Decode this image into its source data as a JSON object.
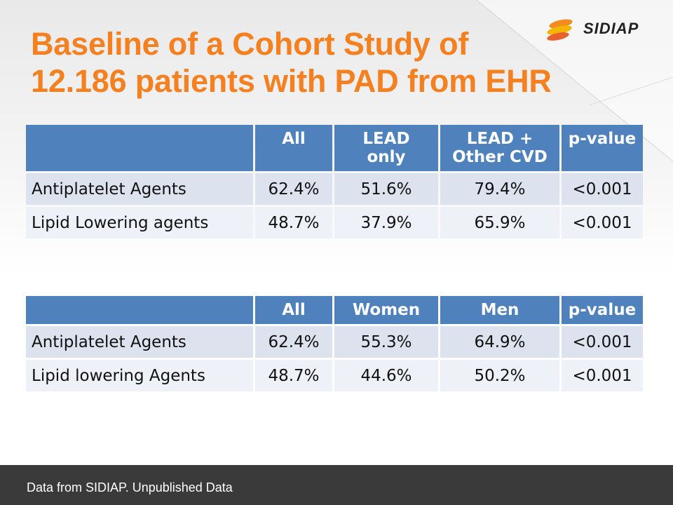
{
  "slide": {
    "title_line1": "Baseline of a Cohort Study of",
    "title_line2": "12.186 patients with PAD from EHR",
    "logo_text": "SIDIAP",
    "footer": "Data from SIDIAP. Unpublished  Data"
  },
  "colors": {
    "title": "#f5801f",
    "table_header": "#4f81bd",
    "table_row": "#dde3ee",
    "footer": "#3a3a3a"
  },
  "table1": {
    "headers": [
      "",
      "All",
      "LEAD\nonly",
      "LEAD +\nOther CVD",
      "p-value"
    ],
    "header_lines": [
      [
        ""
      ],
      [
        "All"
      ],
      [
        "LEAD",
        "only"
      ],
      [
        "LEAD +",
        "Other CVD"
      ],
      [
        "p-value"
      ]
    ],
    "rows": [
      [
        "Antiplatelet Agents",
        "62.4%",
        "51.6%",
        "79.4%",
        "<0.001"
      ],
      [
        "Lipid Lowering agents",
        "48.7%",
        "37.9%",
        "65.9%",
        "<0.001"
      ]
    ]
  },
  "table2": {
    "headers": [
      "",
      "All",
      "Women",
      "Men",
      "p-value"
    ],
    "rows": [
      [
        "Antiplatelet Agents",
        "62.4%",
        "55.3%",
        "64.9%",
        "<0.001"
      ],
      [
        "Lipid lowering Agents",
        "48.7%",
        "44.6%",
        "50.2%",
        "<0.001"
      ]
    ]
  }
}
